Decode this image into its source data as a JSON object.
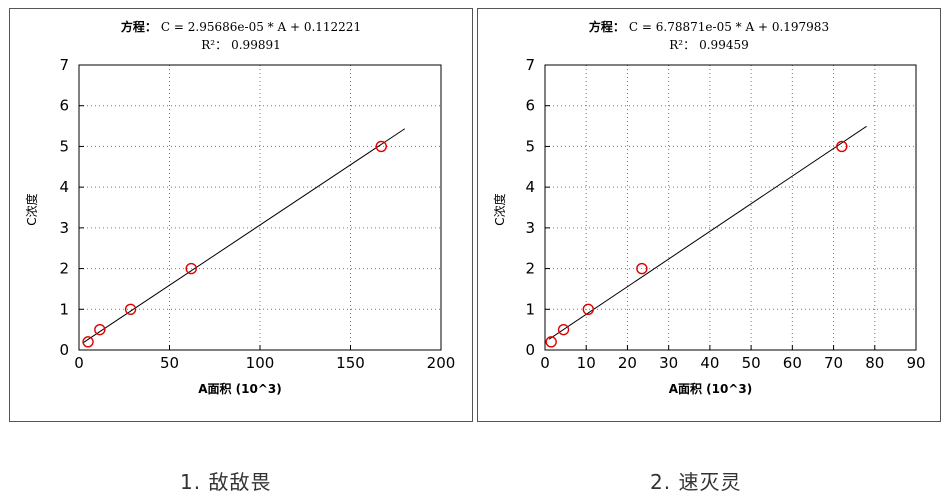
{
  "captions": [
    "1. 敌敌畏",
    "2. 速灭灵"
  ],
  "chart_data": [
    {
      "type": "scatter",
      "title": "方程：C = 2.95686e-05 * A + 0.112221",
      "equation_label": "方程：",
      "equation": "C = 2.95686e-05 * A + 0.112221",
      "r2_label": "R²：",
      "r2": "0.99891",
      "xlabel": "A面积 (10^3)",
      "ylabel": "C浓度",
      "xlim": [
        0,
        200
      ],
      "ylim": [
        0,
        7
      ],
      "xticks": [
        0,
        50,
        100,
        150,
        200
      ],
      "yticks": [
        0,
        1,
        2,
        3,
        4,
        5,
        6,
        7
      ],
      "grid": true,
      "points": {
        "x": [
          5,
          11.5,
          28.5,
          62,
          167
        ],
        "y": [
          0.2,
          0.5,
          1,
          2,
          5
        ]
      },
      "fit_line": {
        "slope": 0.0295686,
        "intercept": 0.112221,
        "x_range": [
          2,
          180
        ]
      },
      "marker_color": "#e00000",
      "line_color": "#000000"
    },
    {
      "type": "scatter",
      "title": "方程：C = 6.78871e-05 * A + 0.197983",
      "equation_label": "方程：",
      "equation": "C = 6.78871e-05 * A + 0.197983",
      "r2_label": "R²：",
      "r2": "0.99459",
      "xlabel": "A面积 (10^3)",
      "ylabel": "C浓度",
      "xlim": [
        0,
        90
      ],
      "ylim": [
        0,
        7
      ],
      "xticks": [
        0,
        10,
        20,
        30,
        40,
        50,
        60,
        70,
        80,
        90
      ],
      "yticks": [
        0,
        1,
        2,
        3,
        4,
        5,
        6,
        7
      ],
      "grid": true,
      "points": {
        "x": [
          1.5,
          4.5,
          10.5,
          23.5,
          72
        ],
        "y": [
          0.2,
          0.5,
          1,
          2,
          5
        ]
      },
      "fit_line": {
        "slope": 0.0678871,
        "intercept": 0.197983,
        "x_range": [
          1,
          78
        ]
      },
      "marker_color": "#e00000",
      "line_color": "#000000"
    }
  ]
}
